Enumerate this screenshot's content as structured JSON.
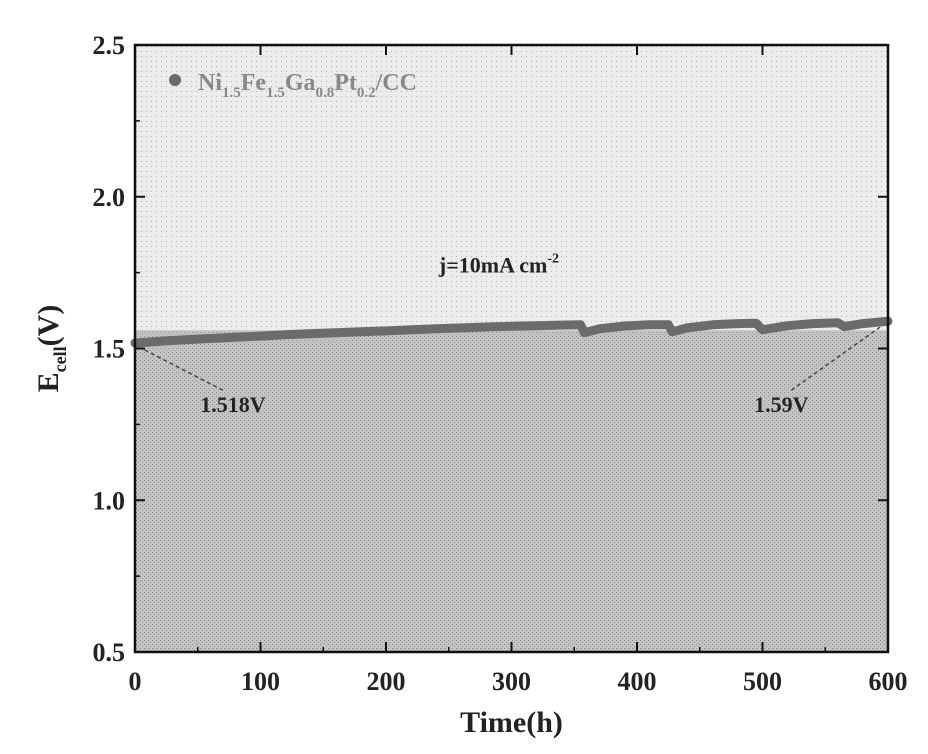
{
  "chart_data": {
    "type": "line",
    "title": "",
    "xlabel": "Time(h)",
    "ylabel": {
      "main": "E",
      "sub": "cell",
      "suffix": "(V)"
    },
    "xlim": [
      0,
      600
    ],
    "ylim": [
      0.5,
      2.5
    ],
    "xticks": [
      0,
      100,
      200,
      300,
      400,
      500,
      600
    ],
    "xtick_labels": [
      "0",
      "100",
      "200",
      "300",
      "400",
      "500",
      "600"
    ],
    "yticks": [
      0.5,
      1.0,
      1.5,
      2.0,
      2.5
    ],
    "ytick_labels": [
      "0.5",
      "1.0",
      "1.5",
      "2.0",
      "2.5"
    ],
    "legend": {
      "position": "top-left",
      "label_parts": [
        {
          "t": "Ni",
          "sub": false
        },
        {
          "t": "1.5",
          "sub": true
        },
        {
          "t": "Fe",
          "sub": false
        },
        {
          "t": "1.5",
          "sub": true
        },
        {
          "t": "Ga",
          "sub": false
        },
        {
          "t": "0.8",
          "sub": true
        },
        {
          "t": "Pt",
          "sub": false
        },
        {
          "t": "0.2",
          "sub": true
        },
        {
          "t": "/CC",
          "sub": false
        }
      ]
    },
    "series": [
      {
        "name": "Ni1.5Fe1.5Ga0.8Pt0.2/CC",
        "color": "#6b6b6b",
        "x": [
          0,
          20,
          40,
          60,
          80,
          100,
          120,
          140,
          160,
          180,
          200,
          220,
          240,
          260,
          280,
          300,
          320,
          340,
          355,
          358,
          370,
          390,
          410,
          425,
          428,
          440,
          460,
          480,
          495,
          500,
          520,
          540,
          560,
          565,
          580,
          600
        ],
        "y": [
          1.518,
          1.524,
          1.529,
          1.533,
          1.537,
          1.541,
          1.545,
          1.549,
          1.552,
          1.555,
          1.558,
          1.562,
          1.565,
          1.568,
          1.571,
          1.573,
          1.575,
          1.577,
          1.578,
          1.552,
          1.565,
          1.574,
          1.578,
          1.578,
          1.555,
          1.568,
          1.578,
          1.582,
          1.583,
          1.562,
          1.575,
          1.582,
          1.585,
          1.572,
          1.582,
          1.59
        ]
      }
    ],
    "annotations": [
      {
        "text": "j=10mA cm",
        "sup": "-2",
        "x": 290,
        "y": 1.75
      },
      {
        "text": "1.518V",
        "x": 78,
        "y": 1.29,
        "arrow_to": [
          0,
          1.518
        ]
      },
      {
        "text": "1.59V",
        "x": 515,
        "y": 1.29,
        "arrow_to": [
          600,
          1.59
        ]
      }
    ]
  }
}
